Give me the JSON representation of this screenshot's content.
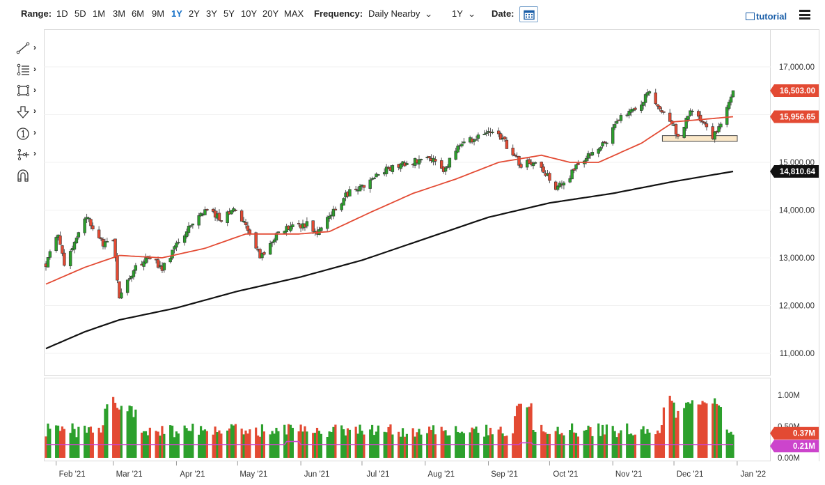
{
  "toolbar": {
    "range_label": "Range:",
    "ranges": [
      "1D",
      "5D",
      "1M",
      "3M",
      "6M",
      "9M",
      "1Y",
      "2Y",
      "3Y",
      "5Y",
      "10Y",
      "20Y",
      "MAX"
    ],
    "active_range": "1Y",
    "frequency_label": "Frequency:",
    "frequency_value": "Daily Nearby",
    "period_value": "1Y",
    "date_label": "Date:",
    "tutorial_label": "tutorial"
  },
  "tools": [
    "line-tool-icon",
    "fib-tool-icon",
    "rectangle-tool-icon",
    "arrow-tool-icon",
    "label-tool-icon",
    "measure-tool-icon",
    "magnet-icon"
  ],
  "colors": {
    "up": "#2ca02c",
    "down": "#e34a33",
    "ma50": "#e34a33",
    "ma200": "#111111",
    "vol_avg": "#cc44cc",
    "zone_fill": "#fbe8c8"
  },
  "chart_data": {
    "type": "candlestick",
    "period": "1Y daily",
    "x_ticks": [
      "Feb '21",
      "Mar '21",
      "Apr '21",
      "May '21",
      "Jun '21",
      "Jul '21",
      "Aug '21",
      "Sep '21",
      "Oct '21",
      "Nov '21",
      "Dec '21",
      "Jan '22"
    ],
    "y_ticks": [
      "17,000.00",
      "16,000.00",
      "15,000.00",
      "14,000.00",
      "13,000.00",
      "12,000.00",
      "11,000.00"
    ],
    "ylim": [
      10900,
      17150
    ],
    "last_price": "16,503.00",
    "ma50_last": "15,956.65",
    "ma200_last": "14,810.64",
    "support_zone": [
      15440,
      15560
    ],
    "price_anchors": [
      [
        "2021-01-27",
        12850
      ],
      [
        "2021-02-02",
        13500
      ],
      [
        "2021-02-05",
        12900
      ],
      [
        "2021-02-16",
        13850
      ],
      [
        "2021-02-24",
        13300
      ],
      [
        "2021-03-01",
        13300
      ],
      [
        "2021-03-04",
        12200
      ],
      [
        "2021-03-08",
        12550
      ],
      [
        "2021-03-12",
        12800
      ],
      [
        "2021-03-19",
        13000
      ],
      [
        "2021-03-25",
        12800
      ],
      [
        "2021-04-09",
        13750
      ],
      [
        "2021-04-16",
        14000
      ],
      [
        "2021-04-23",
        13800
      ],
      [
        "2021-04-29",
        14000
      ],
      [
        "2021-05-05",
        13700
      ],
      [
        "2021-05-12",
        13000
      ],
      [
        "2021-05-18",
        13350
      ],
      [
        "2021-05-21",
        13600
      ],
      [
        "2021-06-04",
        13700
      ],
      [
        "2021-06-08",
        13500
      ],
      [
        "2021-06-25",
        14400
      ],
      [
        "2021-07-06",
        14600
      ],
      [
        "2021-07-09",
        14800
      ],
      [
        "2021-07-19",
        14900
      ],
      [
        "2021-07-23",
        15000
      ],
      [
        "2021-08-04",
        15100
      ],
      [
        "2021-08-10",
        14850
      ],
      [
        "2021-08-13",
        15050
      ],
      [
        "2021-08-19",
        15400
      ],
      [
        "2021-08-30",
        15600
      ],
      [
        "2021-09-07",
        15550
      ],
      [
        "2021-09-10",
        15350
      ],
      [
        "2021-09-17",
        14950
      ],
      [
        "2021-09-24",
        15050
      ],
      [
        "2021-10-04",
        14500
      ],
      [
        "2021-10-11",
        14700
      ],
      [
        "2021-10-13",
        14900
      ],
      [
        "2021-10-22",
        15200
      ],
      [
        "2021-10-29",
        15450
      ],
      [
        "2021-11-05",
        16000
      ],
      [
        "2021-11-12",
        16100
      ],
      [
        "2021-11-19",
        16500
      ],
      [
        "2021-11-26",
        16000
      ],
      [
        "2021-12-01",
        15750
      ],
      [
        "2021-12-03",
        15550
      ],
      [
        "2021-12-10",
        16100
      ],
      [
        "2021-12-14",
        15900
      ],
      [
        "2021-12-20",
        15500
      ],
      [
        "2021-12-27",
        16150
      ],
      [
        "2021-12-30",
        16503
      ]
    ],
    "ma50_anchors": [
      [
        "2021-01-27",
        12450
      ],
      [
        "2021-02-15",
        12800
      ],
      [
        "2021-03-04",
        13050
      ],
      [
        "2021-03-25",
        13000
      ],
      [
        "2021-04-15",
        13200
      ],
      [
        "2021-05-05",
        13500
      ],
      [
        "2021-05-31",
        13500
      ],
      [
        "2021-06-15",
        13550
      ],
      [
        "2021-07-05",
        13950
      ],
      [
        "2021-07-26",
        14350
      ],
      [
        "2021-08-16",
        14650
      ],
      [
        "2021-09-06",
        15000
      ],
      [
        "2021-09-27",
        15150
      ],
      [
        "2021-10-11",
        15000
      ],
      [
        "2021-10-25",
        15000
      ],
      [
        "2021-11-15",
        15400
      ],
      [
        "2021-12-01",
        15850
      ],
      [
        "2021-12-15",
        15900
      ],
      [
        "2021-12-30",
        15956.65
      ]
    ],
    "ma200_anchors": [
      [
        "2021-01-27",
        11100
      ],
      [
        "2021-02-15",
        11450
      ],
      [
        "2021-03-04",
        11700
      ],
      [
        "2021-04-01",
        11950
      ],
      [
        "2021-05-01",
        12300
      ],
      [
        "2021-06-01",
        12600
      ],
      [
        "2021-07-01",
        12950
      ],
      [
        "2021-08-01",
        13400
      ],
      [
        "2021-09-01",
        13850
      ],
      [
        "2021-10-01",
        14150
      ],
      [
        "2021-11-01",
        14350
      ],
      [
        "2021-12-01",
        14600
      ],
      [
        "2021-12-30",
        14810.64
      ]
    ],
    "volume": {
      "y_ticks": [
        "1.00M",
        "0.50M",
        "0.00M"
      ],
      "ylim": [
        0,
        1.0
      ],
      "last_volume": "0.37M",
      "avg_volume": "0.21M"
    }
  }
}
